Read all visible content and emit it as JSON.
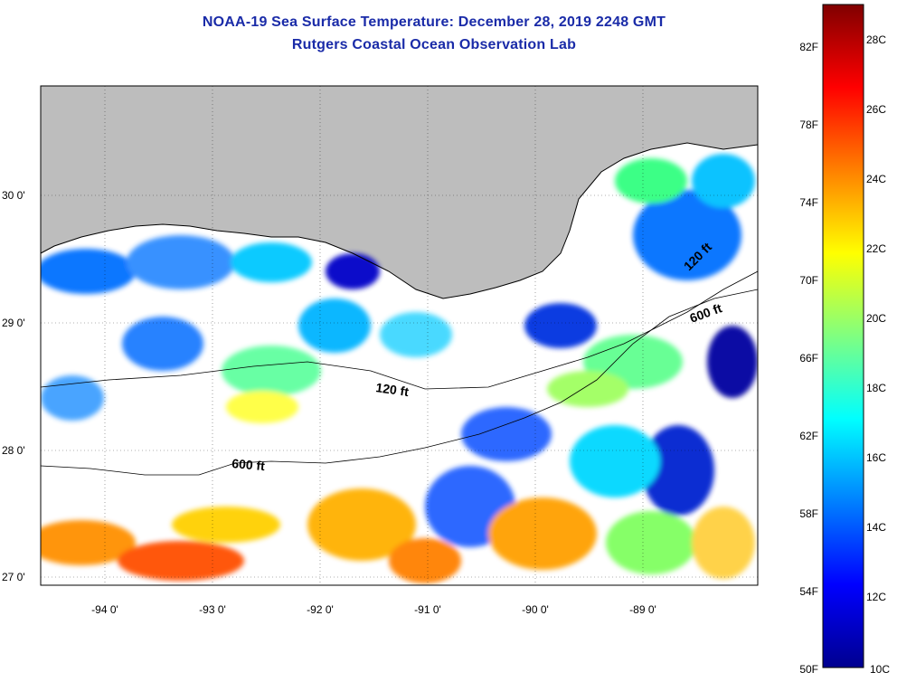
{
  "title": {
    "line1": "NOAA-19 Sea Surface Temperature:  December 28, 2019 2248 GMT",
    "line2": "Rutgers Coastal Ocean Observation Lab"
  },
  "map": {
    "lat_labels": [
      "30 0'",
      "29 0'",
      "28 0'",
      "27 0'"
    ],
    "lon_labels": [
      "-94 0'",
      "-93 0'",
      "-92 0'",
      "-91 0'",
      "-90 0'",
      "-89 0'"
    ],
    "contour_labels": {
      "c120_west": "120 ft",
      "c600_west": "600 ft",
      "c600_east": "600 ft",
      "c120_east": "120 ft"
    },
    "land_color": "#bdbdbd",
    "cloud_color": "#ffffff"
  },
  "colorbar": {
    "fahrenheit_labels": [
      "82F",
      "78F",
      "74F",
      "70F",
      "66F",
      "62F",
      "58F",
      "54F",
      "50F"
    ],
    "celsius_labels": [
      "28C",
      "26C",
      "24C",
      "22C",
      "20C",
      "18C",
      "16C",
      "14C",
      "12C",
      "10C"
    ],
    "colors": [
      "#00008f",
      "#0000ff",
      "#0080ff",
      "#00ffff",
      "#80ff80",
      "#ffff00",
      "#ff8000",
      "#ff0000",
      "#800000"
    ]
  }
}
